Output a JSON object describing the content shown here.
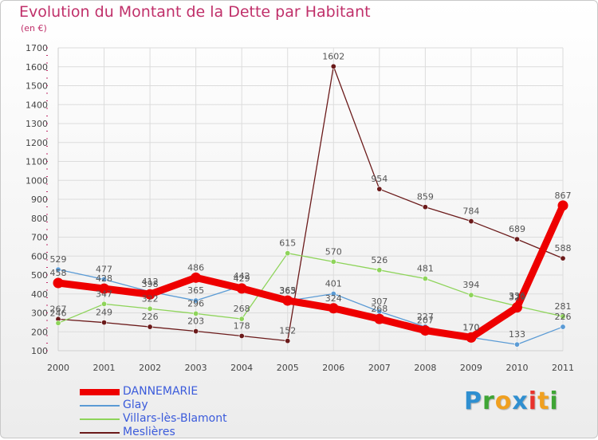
{
  "title": "Evolution du Montant de la Dette par Habitant",
  "subtitle": "(en €)",
  "logo": {
    "text": "Proxiti",
    "colors": [
      "#2f8fd0",
      "#3fa535",
      "#f0a020",
      "#2f8fd0",
      "#e8322c",
      "#f0a020",
      "#3fa535"
    ]
  },
  "chart_data": {
    "type": "line",
    "categories": [
      "2000",
      "2001",
      "2002",
      "2003",
      "2004",
      "2005",
      "2006",
      "2007",
      "2008",
      "2009",
      "2010",
      "2011"
    ],
    "ylim": [
      100,
      1700
    ],
    "yticks": [
      100,
      200,
      300,
      400,
      500,
      600,
      700,
      800,
      900,
      1000,
      1100,
      1200,
      1300,
      1400,
      1500,
      1600,
      1700
    ],
    "grid": true,
    "legend_position": "bottom-left",
    "series": [
      {
        "name": "DANNEMARIE",
        "color": "#ee0000",
        "values": [
          458,
          428,
          398,
          486,
          429,
          365,
          324,
          268,
          207,
          170,
          329,
          867
        ]
      },
      {
        "name": "Glay",
        "color": "#5b9bd5",
        "values": [
          529,
          477,
          412,
          365,
          442,
          363,
          401,
          307,
          227,
          170,
          133,
          226
        ]
      },
      {
        "name": "Villars-lès-Blamont",
        "color": "#8ed45a",
        "values": [
          246,
          347,
          322,
          296,
          268,
          615,
          570,
          526,
          481,
          394,
          336,
          281
        ]
      },
      {
        "name": "Meslières",
        "color": "#6b1a1a",
        "values": [
          267,
          249,
          226,
          203,
          178,
          152,
          1602,
          954,
          859,
          784,
          689,
          588
        ]
      }
    ]
  }
}
